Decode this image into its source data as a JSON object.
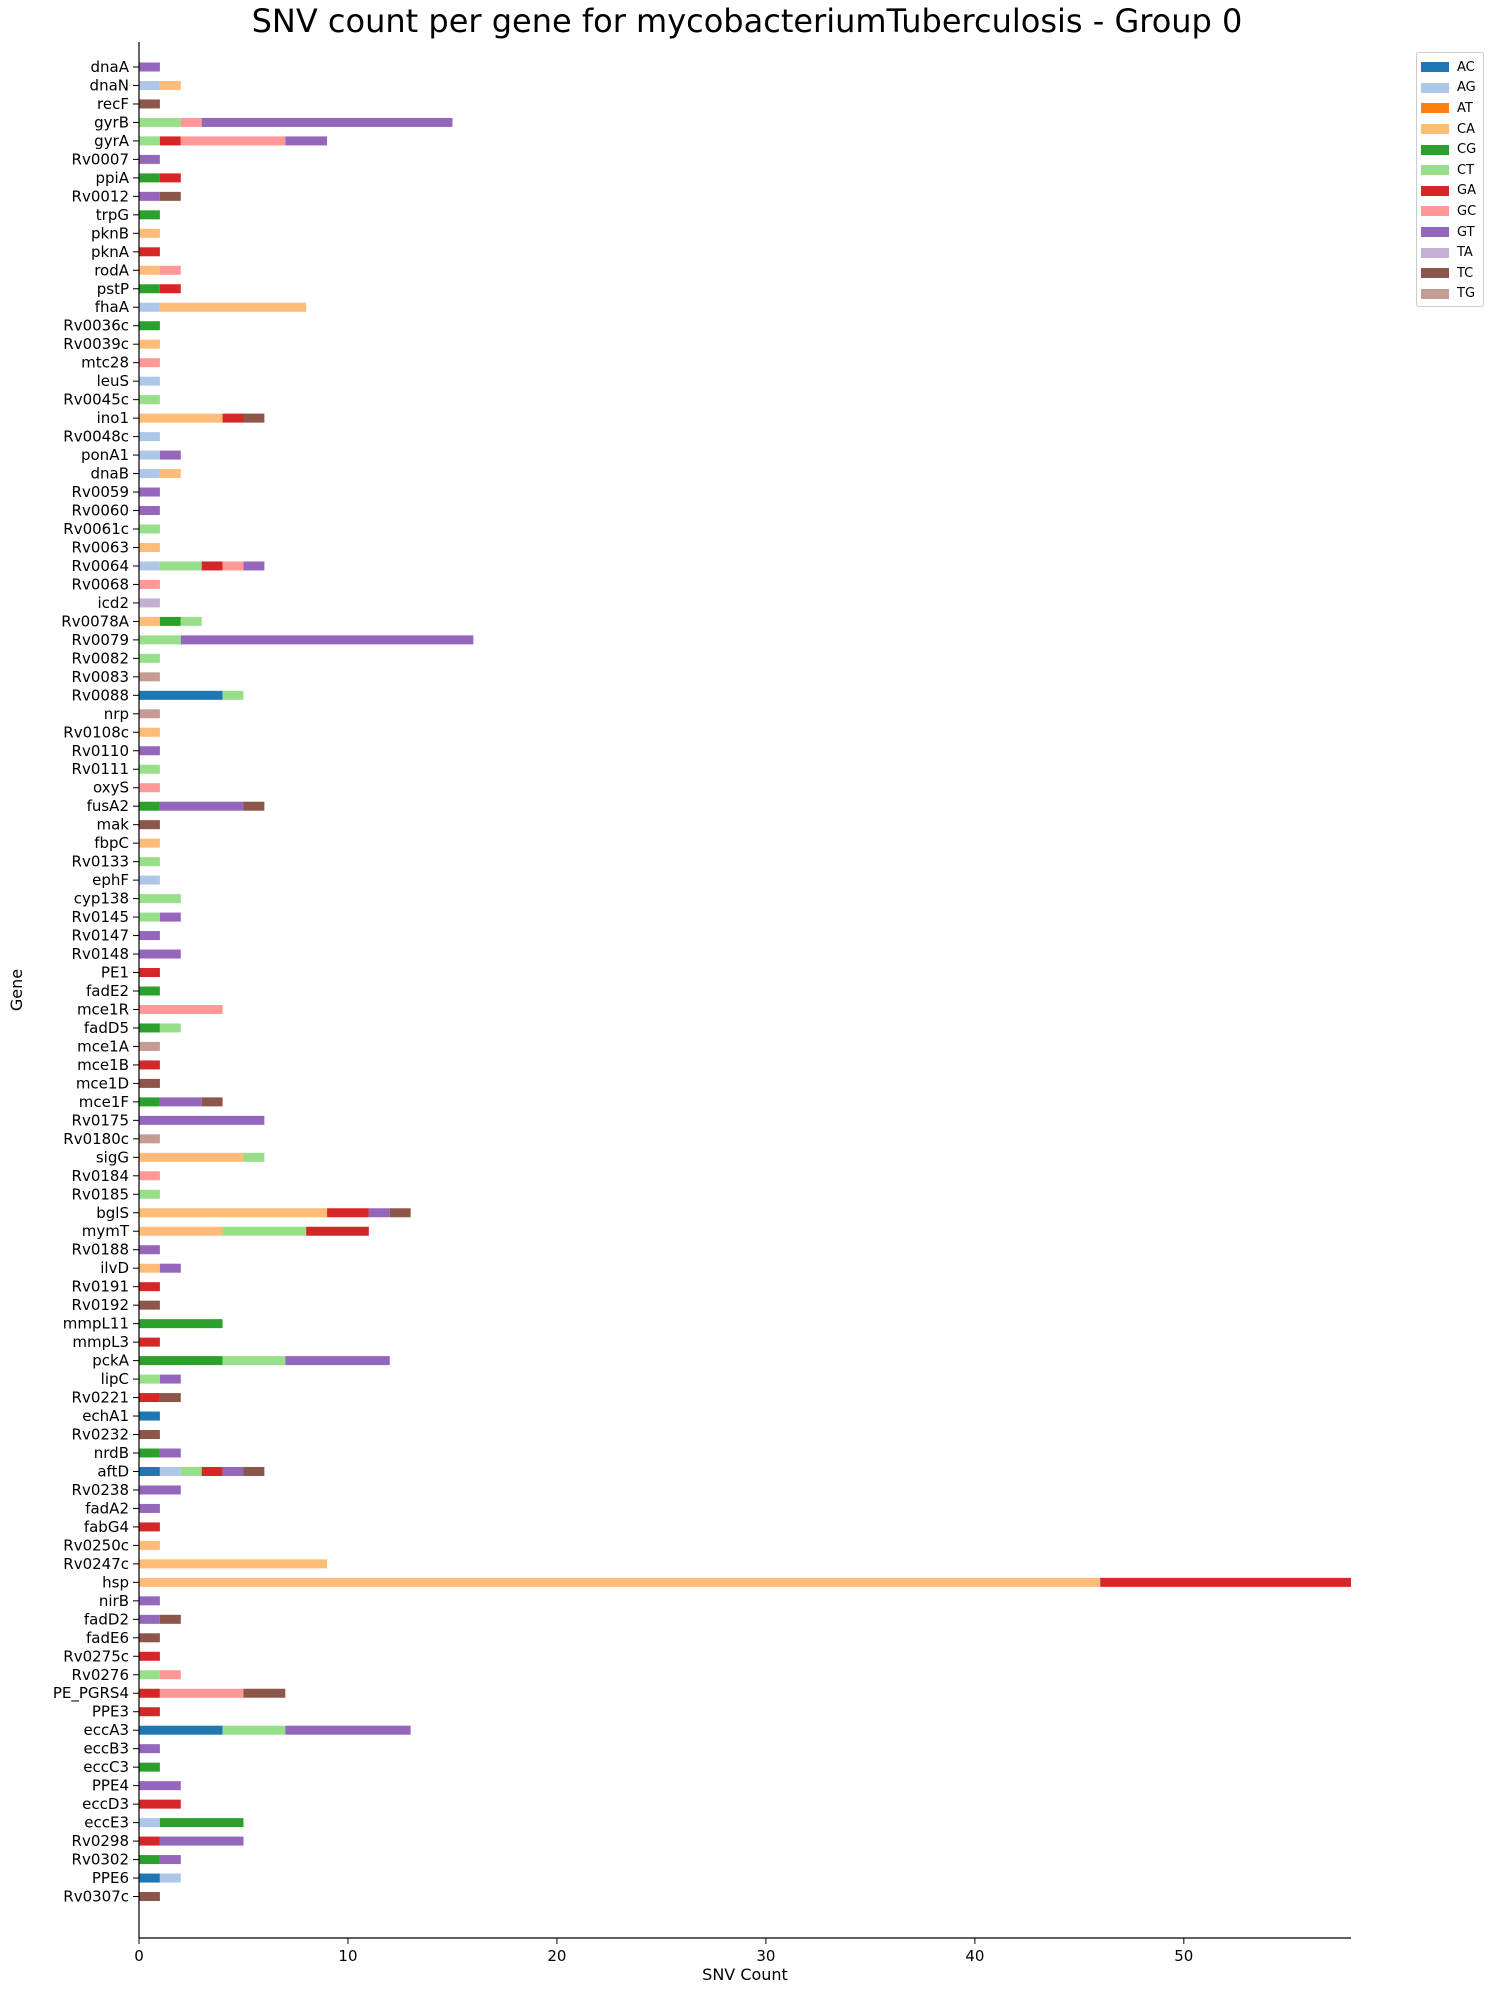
{
  "chart_data": {
    "type": "bar",
    "orientation": "horizontal",
    "stacked": true,
    "title": "SNV count per gene for mycobacteriumTuberculosis - Group 0",
    "xlabel": "SNV Count",
    "ylabel": "Gene",
    "xlim": [
      0,
      58
    ],
    "xticks": [
      0,
      10,
      20,
      30,
      40,
      50
    ],
    "grid": false,
    "legend_position": "top-right-outside",
    "series_names": [
      "AC",
      "AG",
      "AT",
      "CA",
      "CG",
      "CT",
      "GA",
      "GC",
      "GT",
      "TA",
      "TC",
      "TG"
    ],
    "series_colors": {
      "AC": "#1f77b4",
      "AG": "#aec7e8",
      "AT": "#ff7f0e",
      "CA": "#ffbb78",
      "CG": "#2ca02c",
      "CT": "#98df8a",
      "GA": "#d62728",
      "GC": "#ff9896",
      "GT": "#9467bd",
      "TA": "#c5b0d5",
      "TC": "#8c564b",
      "TG": "#c49c94"
    },
    "genes": [
      {
        "gene": "dnaA",
        "counts": {
          "GT": 1
        }
      },
      {
        "gene": "dnaN",
        "counts": {
          "AG": 1,
          "CA": 1
        }
      },
      {
        "gene": "recF",
        "counts": {
          "TC": 1
        }
      },
      {
        "gene": "gyrB",
        "counts": {
          "CT": 2,
          "GC": 1,
          "GT": 12
        }
      },
      {
        "gene": "gyrA",
        "counts": {
          "CT": 1,
          "GA": 1,
          "GC": 5,
          "GT": 2
        }
      },
      {
        "gene": "Rv0007",
        "counts": {
          "GT": 1
        }
      },
      {
        "gene": "ppiA",
        "counts": {
          "CG": 1,
          "GA": 1
        }
      },
      {
        "gene": "Rv0012",
        "counts": {
          "GT": 1,
          "TC": 1
        }
      },
      {
        "gene": "trpG",
        "counts": {
          "CG": 1
        }
      },
      {
        "gene": "pknB",
        "counts": {
          "CA": 1
        }
      },
      {
        "gene": "pknA",
        "counts": {
          "GA": 1
        }
      },
      {
        "gene": "rodA",
        "counts": {
          "CA": 1,
          "GC": 1
        }
      },
      {
        "gene": "pstP",
        "counts": {
          "CG": 1,
          "GA": 1
        }
      },
      {
        "gene": "fhaA",
        "counts": {
          "AG": 1,
          "CA": 7
        }
      },
      {
        "gene": "Rv0036c",
        "counts": {
          "CG": 1
        }
      },
      {
        "gene": "Rv0039c",
        "counts": {
          "CA": 1
        }
      },
      {
        "gene": "mtc28",
        "counts": {
          "GC": 1
        }
      },
      {
        "gene": "leuS",
        "counts": {
          "AG": 1
        }
      },
      {
        "gene": "Rv0045c",
        "counts": {
          "CT": 1
        }
      },
      {
        "gene": "ino1",
        "counts": {
          "CA": 4,
          "GA": 1,
          "TC": 1
        }
      },
      {
        "gene": "Rv0048c",
        "counts": {
          "AG": 1
        }
      },
      {
        "gene": "ponA1",
        "counts": {
          "AG": 1,
          "GT": 1
        }
      },
      {
        "gene": "dnaB",
        "counts": {
          "AG": 1,
          "CA": 1
        }
      },
      {
        "gene": "Rv0059",
        "counts": {
          "GT": 1
        }
      },
      {
        "gene": "Rv0060",
        "counts": {
          "GT": 1
        }
      },
      {
        "gene": "Rv0061c",
        "counts": {
          "CT": 1
        }
      },
      {
        "gene": "Rv0063",
        "counts": {
          "CA": 1
        }
      },
      {
        "gene": "Rv0064",
        "counts": {
          "AG": 1,
          "CT": 2,
          "GA": 1,
          "GC": 1,
          "GT": 1
        }
      },
      {
        "gene": "Rv0068",
        "counts": {
          "GC": 1
        }
      },
      {
        "gene": "icd2",
        "counts": {
          "TA": 1
        }
      },
      {
        "gene": "Rv0078A",
        "counts": {
          "CA": 1,
          "CG": 1,
          "CT": 1
        }
      },
      {
        "gene": "Rv0079",
        "counts": {
          "CT": 2,
          "GT": 14
        }
      },
      {
        "gene": "Rv0082",
        "counts": {
          "CT": 1
        }
      },
      {
        "gene": "Rv0083",
        "counts": {
          "TG": 1
        }
      },
      {
        "gene": "Rv0088",
        "counts": {
          "AC": 4,
          "CT": 1
        }
      },
      {
        "gene": "nrp",
        "counts": {
          "TG": 1
        }
      },
      {
        "gene": "Rv0108c",
        "counts": {
          "CA": 1
        }
      },
      {
        "gene": "Rv0110",
        "counts": {
          "GT": 1
        }
      },
      {
        "gene": "Rv0111",
        "counts": {
          "CT": 1
        }
      },
      {
        "gene": "oxyS",
        "counts": {
          "GC": 1
        }
      },
      {
        "gene": "fusA2",
        "counts": {
          "CG": 1,
          "GT": 4,
          "TC": 1
        }
      },
      {
        "gene": "mak",
        "counts": {
          "TC": 1
        }
      },
      {
        "gene": "fbpC",
        "counts": {
          "CA": 1
        }
      },
      {
        "gene": "Rv0133",
        "counts": {
          "CT": 1
        }
      },
      {
        "gene": "ephF",
        "counts": {
          "AG": 1
        }
      },
      {
        "gene": "cyp138",
        "counts": {
          "CT": 2
        }
      },
      {
        "gene": "Rv0145",
        "counts": {
          "CT": 1,
          "GT": 1
        }
      },
      {
        "gene": "Rv0147",
        "counts": {
          "GT": 1
        }
      },
      {
        "gene": "Rv0148",
        "counts": {
          "GT": 2
        }
      },
      {
        "gene": "PE1",
        "counts": {
          "GA": 1
        }
      },
      {
        "gene": "fadE2",
        "counts": {
          "CG": 1
        }
      },
      {
        "gene": "mce1R",
        "counts": {
          "GC": 4
        }
      },
      {
        "gene": "fadD5",
        "counts": {
          "CG": 1,
          "CT": 1
        }
      },
      {
        "gene": "mce1A",
        "counts": {
          "TG": 1
        }
      },
      {
        "gene": "mce1B",
        "counts": {
          "GA": 1
        }
      },
      {
        "gene": "mce1D",
        "counts": {
          "TC": 1
        }
      },
      {
        "gene": "mce1F",
        "counts": {
          "CG": 1,
          "GT": 2,
          "TC": 1
        }
      },
      {
        "gene": "Rv0175",
        "counts": {
          "GT": 6
        }
      },
      {
        "gene": "Rv0180c",
        "counts": {
          "TG": 1
        }
      },
      {
        "gene": "sigG",
        "counts": {
          "CA": 5,
          "CT": 1
        }
      },
      {
        "gene": "Rv0184",
        "counts": {
          "GC": 1
        }
      },
      {
        "gene": "Rv0185",
        "counts": {
          "CT": 1
        }
      },
      {
        "gene": "bglS",
        "counts": {
          "CA": 9,
          "GA": 2,
          "GT": 1,
          "TC": 1
        }
      },
      {
        "gene": "mymT",
        "counts": {
          "CA": 4,
          "CT": 4,
          "GA": 3
        }
      },
      {
        "gene": "Rv0188",
        "counts": {
          "GT": 1
        }
      },
      {
        "gene": "ilvD",
        "counts": {
          "CA": 1,
          "GT": 1
        }
      },
      {
        "gene": "Rv0191",
        "counts": {
          "GA": 1
        }
      },
      {
        "gene": "Rv0192",
        "counts": {
          "TC": 1
        }
      },
      {
        "gene": "mmpL11",
        "counts": {
          "CG": 4
        }
      },
      {
        "gene": "mmpL3",
        "counts": {
          "GA": 1
        }
      },
      {
        "gene": "pckA",
        "counts": {
          "CG": 4,
          "CT": 3,
          "GT": 5
        }
      },
      {
        "gene": "lipC",
        "counts": {
          "CT": 1,
          "GT": 1
        }
      },
      {
        "gene": "Rv0221",
        "counts": {
          "GA": 1,
          "TC": 1
        }
      },
      {
        "gene": "echA1",
        "counts": {
          "AC": 1
        }
      },
      {
        "gene": "Rv0232",
        "counts": {
          "TC": 1
        }
      },
      {
        "gene": "nrdB",
        "counts": {
          "CG": 1,
          "GT": 1
        }
      },
      {
        "gene": "aftD",
        "counts": {
          "AC": 1,
          "AG": 1,
          "CT": 1,
          "GA": 1,
          "GT": 1,
          "TC": 1
        }
      },
      {
        "gene": "Rv0238",
        "counts": {
          "GT": 2
        }
      },
      {
        "gene": "fadA2",
        "counts": {
          "GT": 1
        }
      },
      {
        "gene": "fabG4",
        "counts": {
          "GA": 1
        }
      },
      {
        "gene": "Rv0250c",
        "counts": {
          "CA": 1
        }
      },
      {
        "gene": "Rv0247c",
        "counts": {
          "CA": 9
        }
      },
      {
        "gene": "hsp",
        "counts": {
          "CA": 46,
          "GA": 12
        }
      },
      {
        "gene": "nirB",
        "counts": {
          "GT": 1
        }
      },
      {
        "gene": "fadD2",
        "counts": {
          "GT": 1,
          "TC": 1
        }
      },
      {
        "gene": "fadE6",
        "counts": {
          "TC": 1
        }
      },
      {
        "gene": "Rv0275c",
        "counts": {
          "GA": 1
        }
      },
      {
        "gene": "Rv0276",
        "counts": {
          "CT": 1,
          "GC": 1
        }
      },
      {
        "gene": "PE_PGRS4",
        "counts": {
          "GA": 1,
          "GC": 4,
          "TC": 2
        }
      },
      {
        "gene": "PPE3",
        "counts": {
          "GA": 1
        }
      },
      {
        "gene": "eccA3",
        "counts": {
          "AC": 4,
          "CT": 3,
          "GT": 6
        }
      },
      {
        "gene": "eccB3",
        "counts": {
          "GT": 1
        }
      },
      {
        "gene": "eccC3",
        "counts": {
          "CG": 1
        }
      },
      {
        "gene": "PPE4",
        "counts": {
          "GT": 2
        }
      },
      {
        "gene": "eccD3",
        "counts": {
          "GA": 2
        }
      },
      {
        "gene": "eccE3",
        "counts": {
          "AG": 1,
          "CG": 4
        }
      },
      {
        "gene": "Rv0298",
        "counts": {
          "GA": 1,
          "GT": 4
        }
      },
      {
        "gene": "Rv0302",
        "counts": {
          "CG": 1,
          "GT": 1
        }
      },
      {
        "gene": "PPE6",
        "counts": {
          "AC": 1,
          "AG": 1
        }
      },
      {
        "gene": "Rv0307c",
        "counts": {
          "TC": 1
        }
      }
    ]
  }
}
